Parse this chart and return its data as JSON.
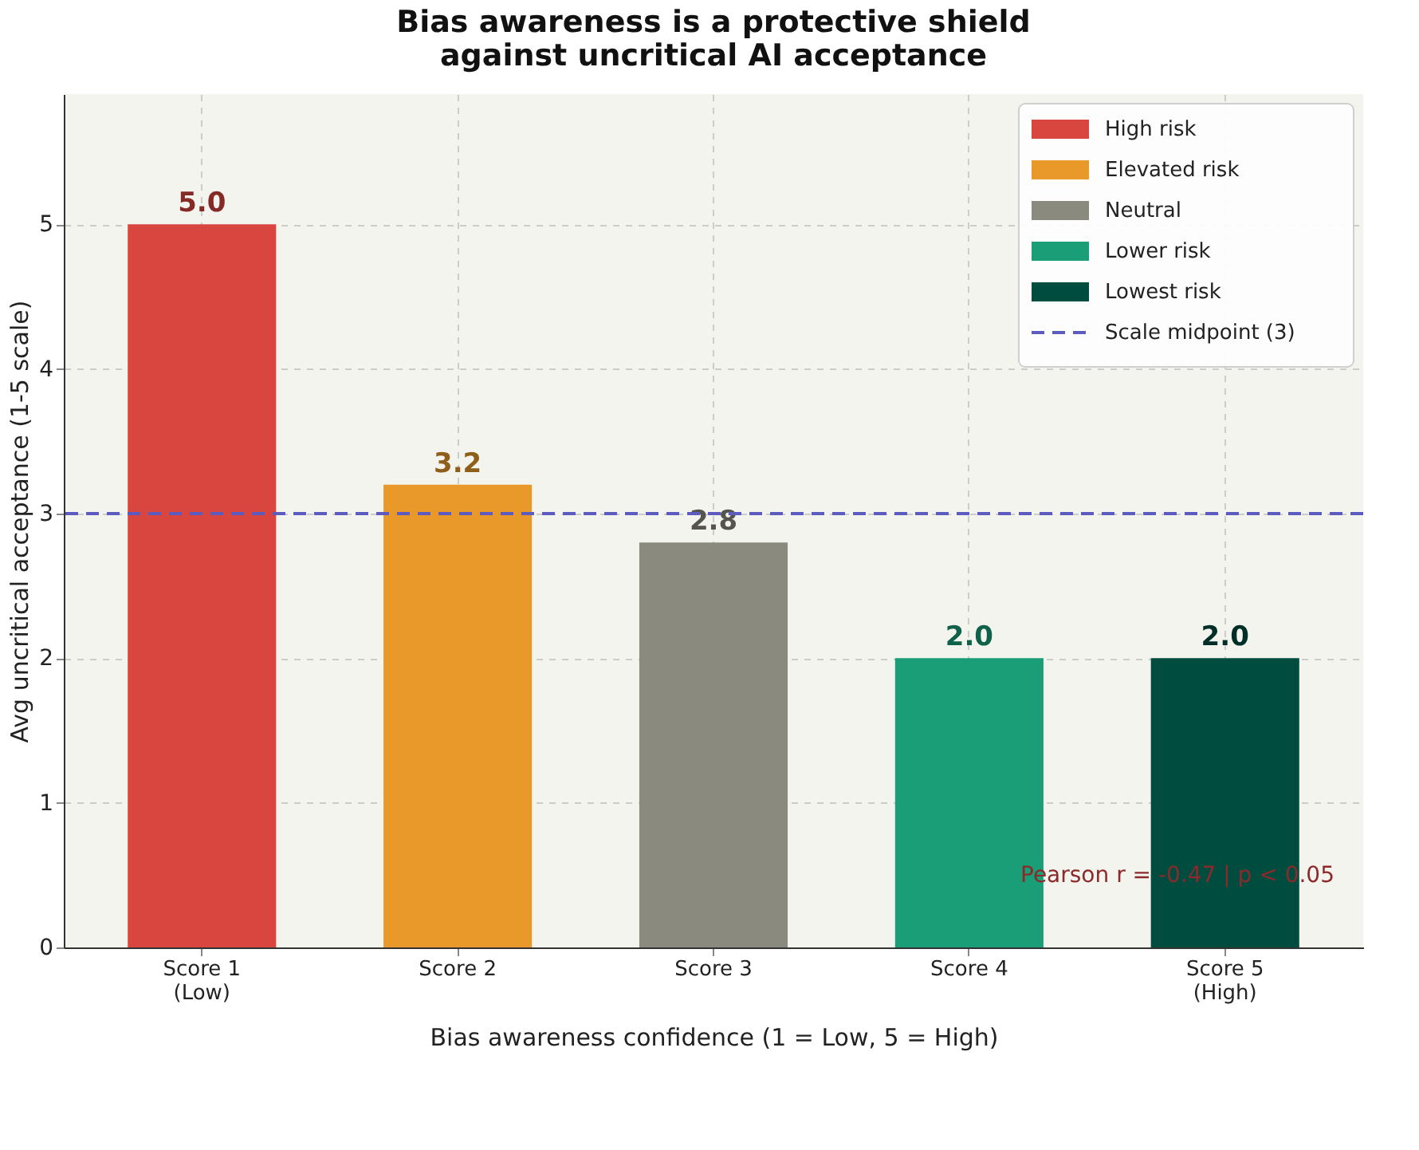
{
  "chart_data": {
    "type": "bar",
    "title": [
      "Bias awareness is a protective shield",
      "against uncritical AI acceptance"
    ],
    "xlabel": "Bias awareness confidence  (1 = Low, 5 = High)",
    "ylabel": "Avg uncritical acceptance (1-5 scale)",
    "categories": [
      "Score 1\n(Low)",
      "Score 2",
      "Score 3",
      "Score 4",
      "Score 5\n(High)"
    ],
    "series": [
      {
        "name": "High risk",
        "color": "#d9453f",
        "values": [
          5.0,
          null,
          null,
          null,
          null
        ],
        "value_labels": [
          "5.0",
          null,
          null,
          null,
          null
        ]
      },
      {
        "name": "Elevated risk",
        "color": "#e8992a",
        "values": [
          null,
          3.2,
          null,
          null,
          null
        ],
        "value_labels": [
          null,
          "3.2",
          null,
          null,
          null
        ]
      },
      {
        "name": "Neutral",
        "color": "#8a8a7e",
        "values": [
          null,
          null,
          2.8,
          null,
          null
        ],
        "value_labels": [
          null,
          null,
          "2.8",
          null,
          null
        ]
      },
      {
        "name": "Lower risk",
        "color": "#1a9e77",
        "values": [
          null,
          null,
          null,
          2.0,
          null
        ],
        "value_labels": [
          null,
          null,
          null,
          "2.0",
          null
        ]
      },
      {
        "name": "Lowest risk",
        "color": "#004d40",
        "values": [
          null,
          null,
          null,
          null,
          2.0
        ],
        "value_labels": [
          null,
          null,
          null,
          null,
          "2.0"
        ]
      }
    ],
    "ylim": [
      0,
      5.9
    ],
    "yticks": [
      0,
      1,
      2,
      3,
      4,
      5
    ],
    "ref_lines": [
      {
        "axis": "y",
        "value": 3,
        "label": "Scale midpoint (3)",
        "color": "#5b5bc0",
        "line_style": "dashed"
      }
    ],
    "annotations": [
      "Pearson r = -0.47  |  p < 0.05"
    ],
    "grid": true,
    "legend": "top right"
  }
}
